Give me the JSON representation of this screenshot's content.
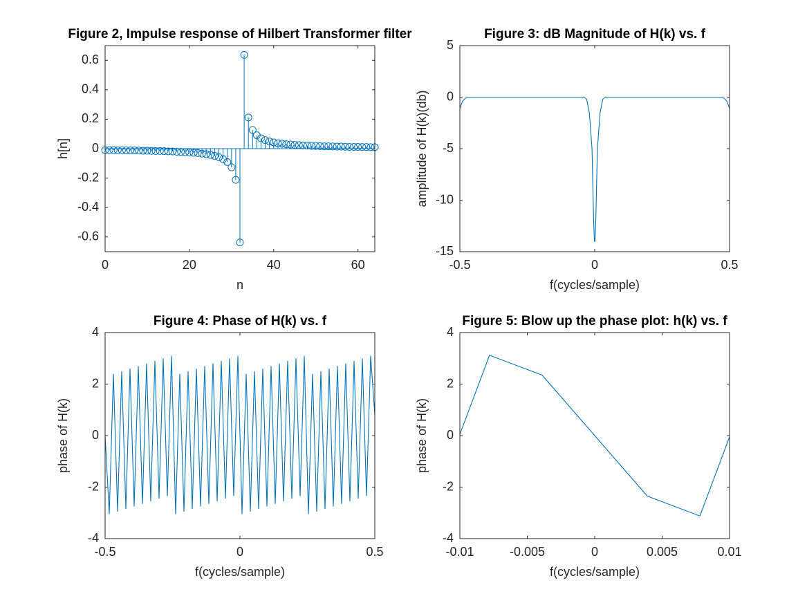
{
  "chart_data": [
    {
      "type": "stem",
      "title": "Figure 2, Impulse response of Hilbert Transformer filter",
      "xlabel": "n",
      "ylabel": "h[n]",
      "color": "#0072bd",
      "x": [
        0,
        1,
        2,
        3,
        4,
        5,
        6,
        7,
        8,
        9,
        10,
        11,
        12,
        13,
        14,
        15,
        16,
        17,
        18,
        19,
        20,
        21,
        22,
        23,
        24,
        25,
        26,
        27,
        28,
        29,
        30,
        31,
        32,
        33,
        34,
        35,
        36,
        37,
        38,
        39,
        40,
        41,
        42,
        43,
        44,
        45,
        46,
        47,
        48,
        49,
        50,
        51,
        52,
        53,
        54,
        55,
        56,
        57,
        58,
        59,
        60,
        61,
        62,
        63,
        64
      ],
      "values": [
        -0.01,
        -0.01,
        -0.01,
        -0.011,
        -0.011,
        -0.012,
        -0.012,
        -0.012,
        -0.013,
        -0.014,
        -0.014,
        -0.015,
        -0.016,
        -0.016,
        -0.017,
        -0.018,
        -0.019,
        -0.021,
        -0.022,
        -0.024,
        -0.025,
        -0.028,
        -0.03,
        -0.034,
        -0.037,
        -0.042,
        -0.049,
        -0.058,
        -0.071,
        -0.091,
        -0.127,
        -0.212,
        -0.637,
        0.637,
        0.212,
        0.127,
        0.091,
        0.071,
        0.058,
        0.049,
        0.042,
        0.037,
        0.034,
        0.03,
        0.028,
        0.025,
        0.024,
        0.022,
        0.021,
        0.019,
        0.018,
        0.017,
        0.016,
        0.016,
        0.015,
        0.014,
        0.014,
        0.013,
        0.012,
        0.012,
        0.012,
        0.011,
        0.011,
        0.01,
        0.01
      ],
      "xlim": [
        0,
        64
      ],
      "xticks": [
        0,
        20,
        40,
        60
      ],
      "ylim": [
        -0.7,
        0.7
      ],
      "yticks": [
        -0.6,
        -0.4,
        -0.2,
        0,
        0.2,
        0.4,
        0.6
      ]
    },
    {
      "type": "line",
      "title": "Figure 3: dB Magnitude of H(k) vs. f",
      "xlabel": "f(cycles/sample)",
      "ylabel": "amplitude of H(k)(db)",
      "color": "#0072bd",
      "x": [
        -0.5,
        -0.49,
        -0.48,
        -0.46,
        -0.04,
        -0.03,
        -0.02,
        -0.01,
        -0.004,
        -0.001,
        0.001,
        0.004,
        0.01,
        0.02,
        0.03,
        0.04,
        0.46,
        0.48,
        0.49,
        0.5
      ],
      "values": [
        -1.1,
        -0.4,
        -0.1,
        0,
        0,
        -0.2,
        -1.5,
        -5,
        -12,
        -14,
        -14,
        -12,
        -5,
        -1.5,
        -0.2,
        0,
        0,
        -0.1,
        -0.4,
        -1.1
      ],
      "xlim": [
        -0.5,
        0.5
      ],
      "xticks": [
        -0.5,
        0,
        0.5
      ],
      "ylim": [
        -15,
        5
      ],
      "yticks": [
        -15,
        -10,
        -5,
        0,
        5
      ]
    },
    {
      "type": "line",
      "title": "Figure 4: Phase of H(k) vs. f",
      "xlabel": "f(cycles/sample)",
      "ylabel": "phase of H(k)",
      "color": "#0072bd",
      "x": [
        -0.5,
        -0.4846,
        -0.4692,
        -0.4538,
        -0.4385,
        -0.4231,
        -0.4077,
        -0.3923,
        -0.3769,
        -0.3615,
        -0.3462,
        -0.3308,
        -0.3154,
        -0.3,
        -0.2846,
        -0.2692,
        -0.2538,
        -0.2385,
        -0.2231,
        -0.2077,
        -0.1923,
        -0.1769,
        -0.1615,
        -0.1462,
        -0.1308,
        -0.1154,
        -0.1,
        -0.0846,
        -0.0692,
        -0.0538,
        -0.0385,
        -0.0231,
        -0.0077,
        0.0077,
        0.0231,
        0.0385,
        0.0538,
        0.0692,
        0.0846,
        0.1,
        0.1154,
        0.1308,
        0.1462,
        0.1615,
        0.1769,
        0.1923,
        0.2077,
        0.2231,
        0.2385,
        0.2538,
        0.2692,
        0.2846,
        0.3,
        0.3154,
        0.3308,
        0.3462,
        0.3615,
        0.3769,
        0.3923,
        0.4077,
        0.4231,
        0.4385,
        0.4538,
        0.4692,
        0.4846,
        0.5
      ],
      "values": [
        0,
        -3.05,
        2.4,
        -2.95,
        2.5,
        -2.85,
        2.6,
        -2.75,
        2.7,
        -2.65,
        2.8,
        -2.55,
        2.9,
        -2.45,
        3.0,
        -2.35,
        3.1,
        -3.05,
        2.4,
        -2.95,
        2.5,
        -2.85,
        2.6,
        -2.75,
        2.7,
        -2.65,
        2.8,
        -2.55,
        2.9,
        -2.45,
        3.0,
        -2.35,
        3.1,
        -3.05,
        2.4,
        -2.95,
        2.5,
        -2.85,
        2.6,
        -2.75,
        2.7,
        -2.65,
        2.8,
        -2.55,
        2.9,
        -2.45,
        3.0,
        -2.35,
        3.1,
        -3.05,
        2.4,
        -2.95,
        2.5,
        -2.85,
        2.6,
        -2.75,
        2.7,
        -2.65,
        2.8,
        -2.55,
        2.9,
        -2.45,
        3.0,
        -2.35,
        3.1,
        0.8
      ],
      "xlim": [
        -0.5,
        0.5
      ],
      "xticks": [
        -0.5,
        0,
        0.5
      ],
      "ylim": [
        -4,
        4
      ],
      "yticks": [
        -4,
        -2,
        0,
        2,
        4
      ]
    },
    {
      "type": "line",
      "title": "Figure 5: Blow up the phase plot: h(k) vs. f",
      "xlabel": "f(cycles/sample)",
      "ylabel": "phase of H(k)",
      "color": "#0072bd",
      "x": [
        -0.01,
        -0.0078,
        -0.0039,
        0.0039,
        0.0078,
        0.01
      ],
      "values": [
        0.05,
        3.12,
        2.35,
        -2.35,
        -3.12,
        -0.05
      ],
      "xlim": [
        -0.01,
        0.01
      ],
      "xticks": [
        -0.01,
        -0.005,
        0,
        0.005,
        0.01
      ],
      "ylim": [
        -4,
        4
      ],
      "yticks": [
        -4,
        -2,
        0,
        2,
        4
      ]
    }
  ]
}
